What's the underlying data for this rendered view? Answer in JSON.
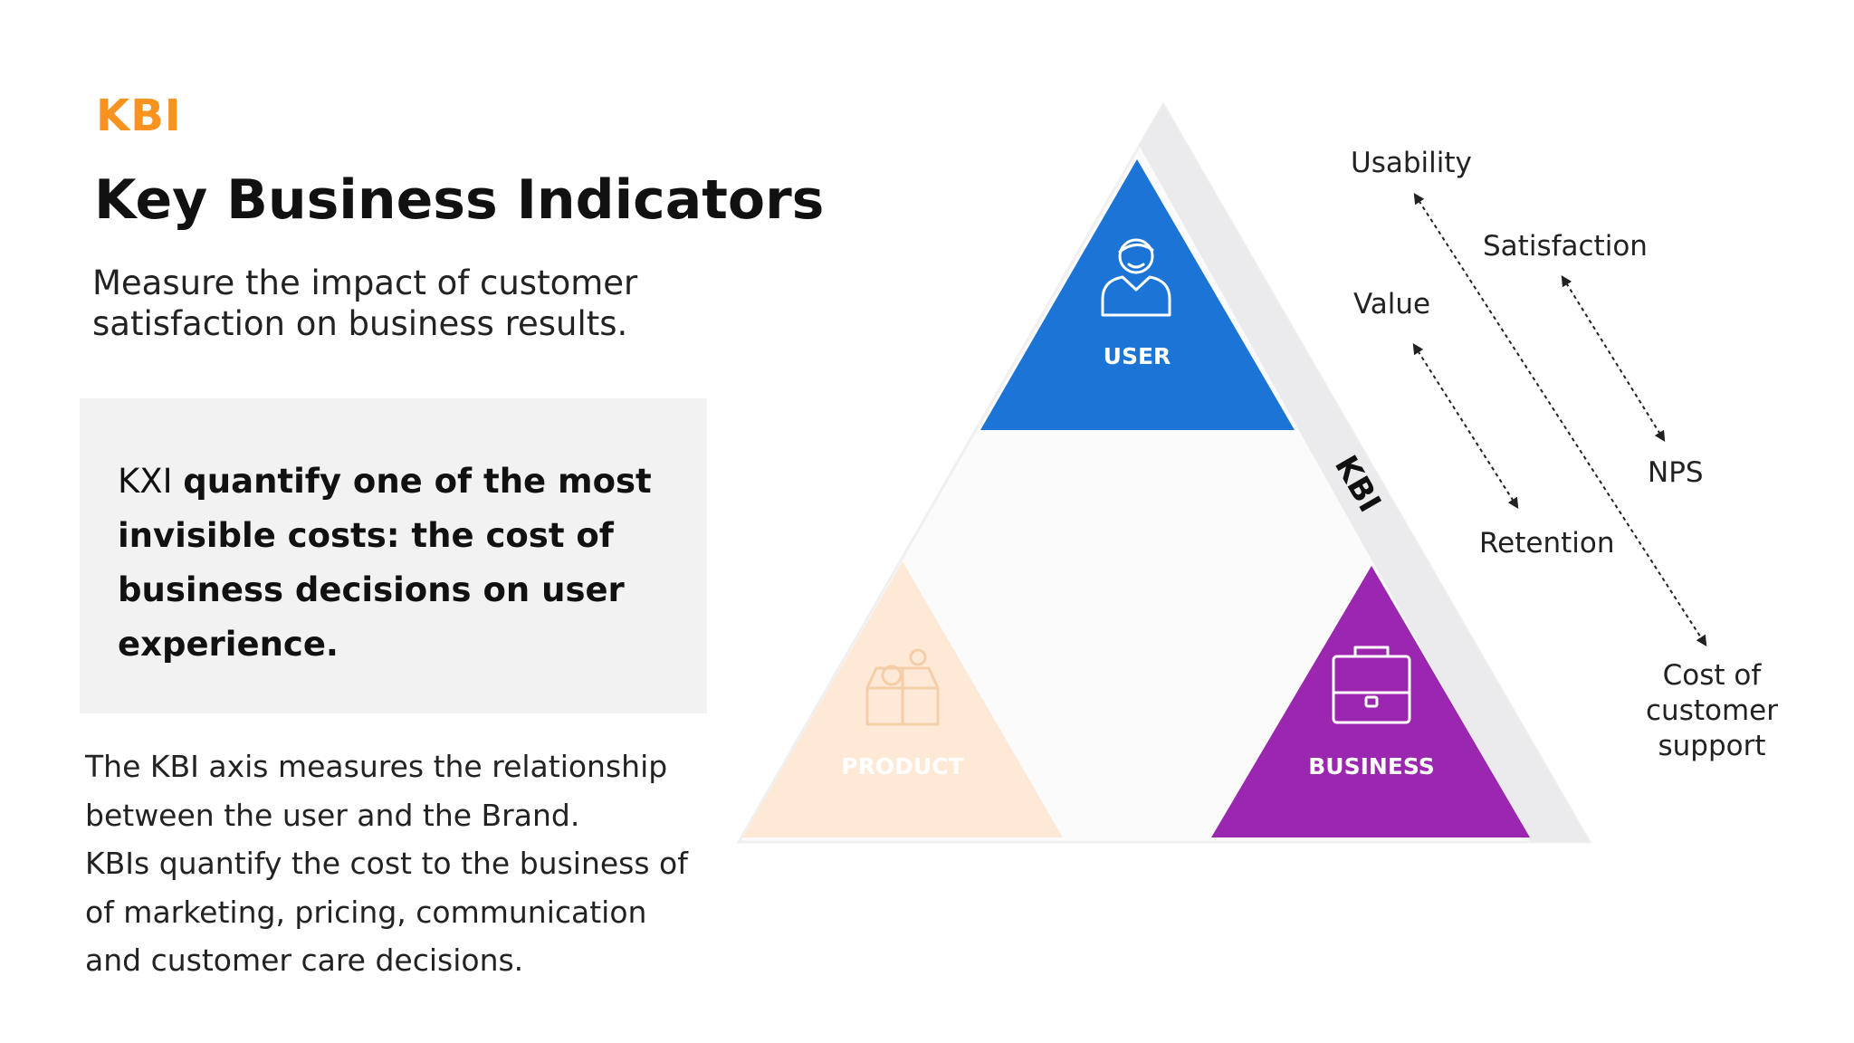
{
  "header": {
    "kicker": "KBI",
    "title": "Key Business Indicators",
    "subtitle": "Measure the impact of customer satisfaction on business results."
  },
  "callout": {
    "lead": "KXI",
    "bold": "quantify one of the most invisible costs: the cost of business decisions on user experience."
  },
  "body": {
    "lines": [
      "The KBI axis measures the relationship",
      "between the user and the Brand.",
      "KBIs quantify the cost to the business of",
      "of marketing, pricing, communication",
      "and customer care decisions."
    ]
  },
  "diagram": {
    "axis_label": "KBI",
    "user": {
      "label": "USER",
      "icon": "user-icon",
      "color": "#1b74d6"
    },
    "product": {
      "label": "PRODUCT",
      "icon": "product-box-icon",
      "color": "#fde9d6"
    },
    "business": {
      "label": "BUSINESS",
      "icon": "briefcase-icon",
      "color": "#9b27b0"
    },
    "metrics": {
      "usability": "Usability",
      "satisfaction": "Satisfaction",
      "value": "Value",
      "nps": "NPS",
      "retention": "Retention",
      "cost_lines": [
        "Cost of",
        "customer",
        "support"
      ]
    }
  }
}
